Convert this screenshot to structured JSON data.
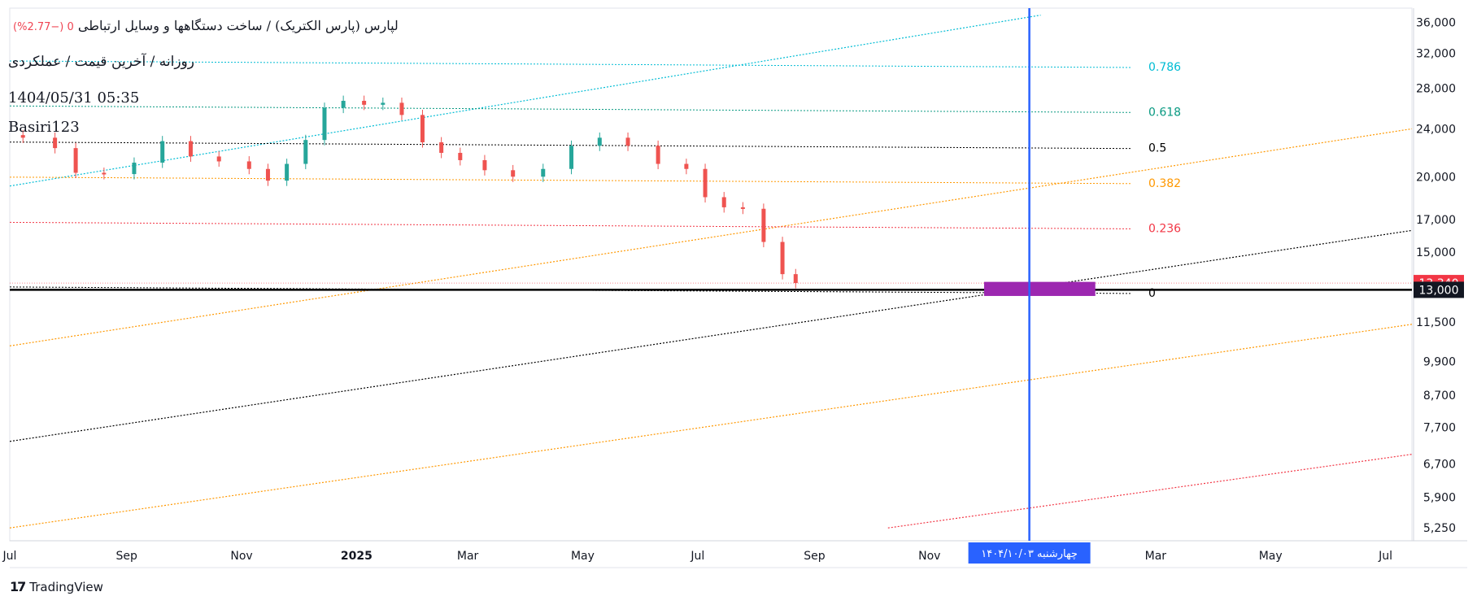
{
  "header": {
    "symbol_line": "لپارس (پارس الکتریک) / ساخت دستگاهها و وسایل ارتباطی",
    "change_prefix": "0",
    "change_pct": "(−2.77%)",
    "interval_line": "روزانه / آخرین قیمت / عملکردی",
    "datetime": "1404/05/31 05:35",
    "author": "Basiri123"
  },
  "branding": {
    "logo": "17",
    "name": "TradingView"
  },
  "chart_data": {
    "type": "candlestick",
    "scale": "log",
    "ylim": [
      5000,
      38000
    ],
    "y_ticks": [
      5250,
      5900,
      6700,
      7700,
      8700,
      9900,
      11500,
      13000,
      15000,
      17000,
      20000,
      24000,
      28000,
      32000,
      36000
    ],
    "y_tick_labels": [
      "5,250",
      "5,900",
      "6,700",
      "7,700",
      "8,700",
      "9,900",
      "11,500",
      "13,000",
      "15,000",
      "17,000",
      "20,000",
      "24,000",
      "28,000",
      "32,000",
      "36,000"
    ],
    "x_ticks": [
      {
        "date": "2024-07-01",
        "label": "Jul",
        "bold": false
      },
      {
        "date": "2024-09-01",
        "label": "Sep",
        "bold": false
      },
      {
        "date": "2024-11-01",
        "label": "Nov",
        "bold": false
      },
      {
        "date": "2025-01-01",
        "label": "2025",
        "bold": true
      },
      {
        "date": "2025-03-01",
        "label": "Mar",
        "bold": false
      },
      {
        "date": "2025-05-01",
        "label": "May",
        "bold": false
      },
      {
        "date": "2025-07-01",
        "label": "Jul",
        "bold": false
      },
      {
        "date": "2025-09-01",
        "label": "Sep",
        "bold": false
      },
      {
        "date": "2025-11-01",
        "label": "Nov",
        "bold": false
      },
      {
        "date": "2026-03-01",
        "label": "Mar",
        "bold": false
      },
      {
        "date": "2026-05-01",
        "label": "May",
        "bold": false
      },
      {
        "date": "2026-07-01",
        "label": "Jul",
        "bold": false
      }
    ],
    "xlim": [
      "2024-07-01",
      "2026-07-15"
    ],
    "candle_colors": {
      "up": "#26a69a",
      "down": "#ef5350"
    },
    "candles": [
      {
        "date": "2024-07-08",
        "close": 23200
      },
      {
        "date": "2024-07-25",
        "close": 22300
      },
      {
        "date": "2024-08-05",
        "close": 20300
      },
      {
        "date": "2024-08-20",
        "close": 20200
      },
      {
        "date": "2024-09-05",
        "close": 21100
      },
      {
        "date": "2024-09-20",
        "close": 22900
      },
      {
        "date": "2024-10-05",
        "close": 21600
      },
      {
        "date": "2024-10-20",
        "close": 21200
      },
      {
        "date": "2024-11-05",
        "close": 20600
      },
      {
        "date": "2024-11-15",
        "close": 19700
      },
      {
        "date": "2024-11-25",
        "close": 21000
      },
      {
        "date": "2024-12-05",
        "close": 23000
      },
      {
        "date": "2024-12-15",
        "close": 26000
      },
      {
        "date": "2024-12-25",
        "close": 26700
      },
      {
        "date": "2025-01-05",
        "close": 26300
      },
      {
        "date": "2025-01-15",
        "close": 26500
      },
      {
        "date": "2025-01-25",
        "close": 25300
      },
      {
        "date": "2025-02-05",
        "close": 22800
      },
      {
        "date": "2025-02-15",
        "close": 21900
      },
      {
        "date": "2025-02-25",
        "close": 21300
      },
      {
        "date": "2025-03-10",
        "close": 20500
      },
      {
        "date": "2025-03-25",
        "close": 20000
      },
      {
        "date": "2025-04-10",
        "close": 20600
      },
      {
        "date": "2025-04-25",
        "close": 22500
      },
      {
        "date": "2025-05-10",
        "close": 23200
      },
      {
        "date": "2025-05-25",
        "close": 22500
      },
      {
        "date": "2025-06-10",
        "close": 21000
      },
      {
        "date": "2025-06-25",
        "close": 20600
      },
      {
        "date": "2025-07-05",
        "close": 18500
      },
      {
        "date": "2025-07-15",
        "close": 17800
      },
      {
        "date": "2025-07-25",
        "close": 17700
      },
      {
        "date": "2025-08-05",
        "close": 15600
      },
      {
        "date": "2025-08-15",
        "close": 13800
      },
      {
        "date": "2025-08-22",
        "close": 13340
      }
    ],
    "price_labels": [
      {
        "value": 13340,
        "label": "13,340",
        "bg": "#f23645",
        "color": "#ffffff"
      },
      {
        "value": 13000,
        "label": "13,000",
        "bg": "#131722",
        "color": "#ffffff"
      }
    ],
    "horizontal_line": {
      "value": 13000,
      "color": "#000000"
    },
    "fib_levels": [
      {
        "level": "0.786",
        "price": 30500,
        "color": "#00bcd4"
      },
      {
        "level": "0.618",
        "price": 25700,
        "color": "#089981"
      },
      {
        "level": "0.5",
        "price": 22400,
        "color": "#000000"
      },
      {
        "level": "0.382",
        "price": 19600,
        "color": "#ff9800"
      },
      {
        "level": "0.236",
        "price": 16500,
        "color": "#f23645"
      },
      {
        "level": "0",
        "price": 12900,
        "color": "#000000"
      }
    ],
    "vertical_marker": {
      "date": "2025-12-24",
      "label": "چهارشنبه ۱۴۰۴/۱۰/۰۳",
      "color": "#2962ff"
    },
    "highlight_box": {
      "date_from": "2025-11-30",
      "date_to": "2026-01-28",
      "price_low": 12700,
      "price_high": 13400,
      "color": "#9c27b0"
    },
    "trend_lines": [
      {
        "color": "#00bcd4",
        "from": {
          "date": "2024-07-01",
          "price": 19300
        },
        "to": {
          "date": "2025-12-30",
          "price": 37000
        }
      },
      {
        "color": "#ff9800",
        "from": {
          "date": "2024-07-01",
          "price": 10500
        },
        "to": {
          "date": "2026-07-15",
          "price": 24000
        }
      },
      {
        "color": "#000000",
        "from": {
          "date": "2024-07-01",
          "price": 7300
        },
        "to": {
          "date": "2026-07-15",
          "price": 16300
        }
      },
      {
        "color": "#ff9800",
        "from": {
          "date": "2024-07-01",
          "price": 5250
        },
        "to": {
          "date": "2026-07-15",
          "price": 11400
        }
      },
      {
        "color": "#f23645",
        "from": {
          "date": "2025-10-10",
          "price": 5250
        },
        "to": {
          "date": "2026-07-15",
          "price": 6950
        }
      }
    ]
  }
}
